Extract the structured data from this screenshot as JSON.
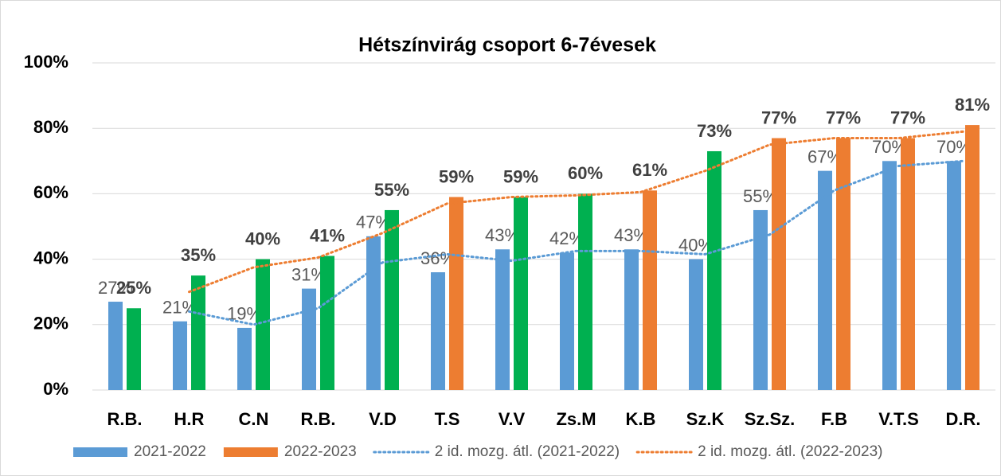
{
  "chart_data": {
    "type": "bar",
    "title": "Hétszínvirág csoport 6-7évesek",
    "categories": [
      "R.B.",
      "H.R",
      "C.N",
      "R.B.",
      "V.D",
      "T.S",
      "V.V",
      "Zs.M",
      "K.B",
      "Sz.K",
      "Sz.Sz.",
      "F.B",
      "V.T.S",
      "D.R."
    ],
    "series": [
      {
        "name": "2021-2022",
        "color": "#5b9bd5",
        "type": "bar",
        "values": [
          27,
          21,
          19,
          31,
          47,
          36,
          43,
          42,
          43,
          40,
          55,
          67,
          70,
          70
        ],
        "value_labels": [
          "27%",
          "21%",
          "19%",
          "31%",
          "47%",
          "36%",
          "43%",
          "42%",
          "43%",
          "40%",
          "55%",
          "67%",
          "70%",
          "70%"
        ]
      },
      {
        "name": "2022-2023",
        "color": "#ed7d31",
        "type": "bar",
        "point_colors": [
          "#00b050",
          "#00b050",
          "#00b050",
          "#00b050",
          "#00b050",
          "#ed7d31",
          "#00b050",
          "#00b050",
          "#ed7d31",
          "#00b050",
          "#ed7d31",
          "#ed7d31",
          "#ed7d31",
          "#ed7d31"
        ],
        "values": [
          25,
          35,
          40,
          41,
          55,
          59,
          59,
          60,
          61,
          73,
          77,
          77,
          77,
          81
        ],
        "value_labels": [
          "25%",
          "35%",
          "40%",
          "41%",
          "55%",
          "59%",
          "59%",
          "60%",
          "61%",
          "73%",
          "77%",
          "77%",
          "77%",
          "81%"
        ]
      },
      {
        "name": "2 id. mozg. átl. (2021-2022)",
        "color": "#5b9bd5",
        "type": "line",
        "dash": "dotted",
        "values": [
          null,
          24,
          20,
          25,
          39,
          41.5,
          39.5,
          42.5,
          42.5,
          41.5,
          47.5,
          61,
          68.5,
          70
        ]
      },
      {
        "name": "2 id. mozg. átl. (2022-2023)",
        "color": "#ed7d31",
        "type": "line",
        "dash": "dotted",
        "values": [
          null,
          30,
          37.5,
          40.5,
          48,
          57,
          59,
          59.5,
          60.5,
          67,
          75,
          77,
          77,
          79
        ]
      }
    ],
    "ylim": [
      0,
      100
    ],
    "yticks": [
      {
        "value": 0,
        "label": "0%"
      },
      {
        "value": 20,
        "label": "20%"
      },
      {
        "value": 40,
        "label": "40%"
      },
      {
        "value": 60,
        "label": "60%"
      },
      {
        "value": 80,
        "label": "80%"
      },
      {
        "value": 100,
        "label": "100%"
      }
    ],
    "grid": true,
    "legend": "bottom"
  }
}
